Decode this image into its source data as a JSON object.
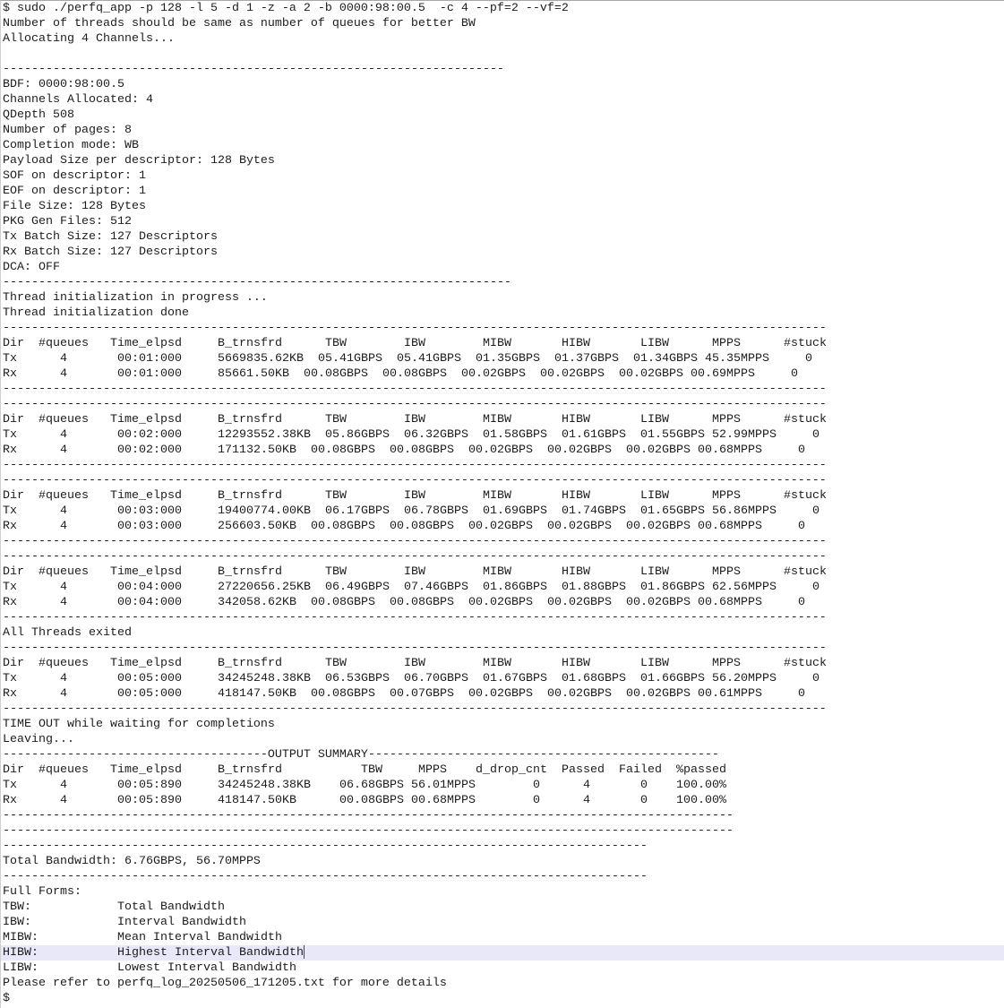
{
  "terminal": {
    "command": "$ sudo ./perfq_app -p 128 -l 5 -d 1 -z -a 2 -b 0000:98:00.5  -c 4 --pf=2 --vf=2",
    "messages_start": [
      "Number of threads should be same as number of queues for better BW",
      "Allocating 4 Channels..."
    ],
    "sep_config_top": "----------------------------------------------------------------------",
    "config": [
      "BDF: 0000:98:00.5",
      "Channels Allocated: 4",
      "QDepth 508",
      "Number of pages: 8",
      "Completion mode: WB",
      "Payload Size per descriptor: 128 Bytes",
      "SOF on descriptor: 1",
      "EOF on descriptor: 1",
      "File Size: 128 Bytes",
      "PKG Gen Files: 512",
      "Tx Batch Size: 127 Descriptors",
      "Rx Batch Size: 127 Descriptors",
      "DCA: OFF"
    ],
    "sep_config_bottom": "-----------------------------------------------------------------------",
    "thread_messages": [
      "Thread initialization in progress ...",
      "Thread initialization done"
    ],
    "sep_table": "-------------------------------------------------------------------------------------------------------------------",
    "stats_headers": [
      "Dir",
      "#queues",
      "Time_elpsd",
      "B_trnsfrd",
      "TBW",
      "IBW",
      "MIBW",
      "HIBW",
      "LIBW",
      "MPPS",
      "#stuck"
    ],
    "intervals": [
      {
        "tx": [
          "Tx",
          "4",
          "00:01:000",
          "5669835.62KB",
          "05.41GBPS",
          "05.41GBPS",
          "01.35GBPS",
          "01.37GBPS",
          "01.34GBPS",
          "45.35MPPS",
          "0"
        ],
        "rx": [
          "Rx",
          "4",
          "00:01:000",
          "85661.50KB",
          "00.08GBPS",
          "00.08GBPS",
          "00.02GBPS",
          "00.02GBPS",
          "00.02GBPS",
          "00.69MPPS",
          "0"
        ]
      },
      {
        "tx": [
          "Tx",
          "4",
          "00:02:000",
          "12293552.38KB",
          "05.86GBPS",
          "06.32GBPS",
          "01.58GBPS",
          "01.61GBPS",
          "01.55GBPS",
          "52.99MPPS",
          "0"
        ],
        "rx": [
          "Rx",
          "4",
          "00:02:000",
          "171132.50KB",
          "00.08GBPS",
          "00.08GBPS",
          "00.02GBPS",
          "00.02GBPS",
          "00.02GBPS",
          "00.68MPPS",
          "0"
        ]
      },
      {
        "tx": [
          "Tx",
          "4",
          "00:03:000",
          "19400774.00KB",
          "06.17GBPS",
          "06.78GBPS",
          "01.69GBPS",
          "01.74GBPS",
          "01.65GBPS",
          "56.86MPPS",
          "0"
        ],
        "rx": [
          "Rx",
          "4",
          "00:03:000",
          "256603.50KB",
          "00.08GBPS",
          "00.08GBPS",
          "00.02GBPS",
          "00.02GBPS",
          "00.02GBPS",
          "00.68MPPS",
          "0"
        ]
      },
      {
        "tx": [
          "Tx",
          "4",
          "00:04:000",
          "27220656.25KB",
          "06.49GBPS",
          "07.46GBPS",
          "01.86GBPS",
          "01.88GBPS",
          "01.86GBPS",
          "62.56MPPS",
          "0"
        ],
        "rx": [
          "Rx",
          "4",
          "00:04:000",
          "342058.62KB",
          "00.08GBPS",
          "00.08GBPS",
          "00.02GBPS",
          "00.02GBPS",
          "00.02GBPS",
          "00.68MPPS",
          "0"
        ]
      },
      {
        "tx": [
          "Tx",
          "4",
          "00:05:000",
          "34245248.38KB",
          "06.53GBPS",
          "06.70GBPS",
          "01.67GBPS",
          "01.68GBPS",
          "01.66GBPS",
          "56.20MPPS",
          "0"
        ],
        "rx": [
          "Rx",
          "4",
          "00:05:000",
          "418147.50KB",
          "00.08GBPS",
          "00.07GBPS",
          "00.02GBPS",
          "00.02GBPS",
          "00.02GBPS",
          "00.61MPPS",
          "0"
        ]
      }
    ],
    "exit_message": "All Threads exited",
    "timeout_messages": [
      "TIME OUT while waiting for completions",
      "Leaving..."
    ],
    "summary": {
      "title_line": "-------------------------------------OUTPUT SUMMARY-------------------------------------------------",
      "headers": [
        "Dir",
        "#queues",
        "Time_elpsd",
        "B_trnsfrd",
        "TBW",
        "MPPS",
        "d_drop_cnt",
        "Passed",
        "Failed",
        "%passed"
      ],
      "rows": [
        [
          "Tx",
          "4",
          "00:05:890",
          "34245248.38KB",
          "06.68GBPS",
          "56.01MPPS",
          "0",
          "4",
          "0",
          "100.00%"
        ],
        [
          "Rx",
          "4",
          "00:05:890",
          "418147.50KB",
          "00.08GBPS",
          "00.68MPPS",
          "0",
          "4",
          "0",
          "100.00%"
        ]
      ],
      "sep": "------------------------------------------------------------------------------------------------------",
      "sep_short": "------------------------------------------------------------------------------------------"
    },
    "total_bandwidth": "Total Bandwidth: 6.76GBPS, 56.70MPPS",
    "full_forms": {
      "title": "Full Forms:",
      "items": [
        {
          "abbr": "TBW:",
          "full": "Total Bandwidth"
        },
        {
          "abbr": "IBW:",
          "full": "Interval Bandwidth"
        },
        {
          "abbr": "MIBW:",
          "full": "Mean Interval Bandwidth"
        },
        {
          "abbr": "HIBW:",
          "full": "Highest Interval Bandwidth"
        },
        {
          "abbr": "LIBW:",
          "full": "Lowest Interval Bandwidth"
        }
      ]
    },
    "log_message": "Please refer to perfq_log_20250506_171205.txt for more details",
    "prompt": "$"
  }
}
